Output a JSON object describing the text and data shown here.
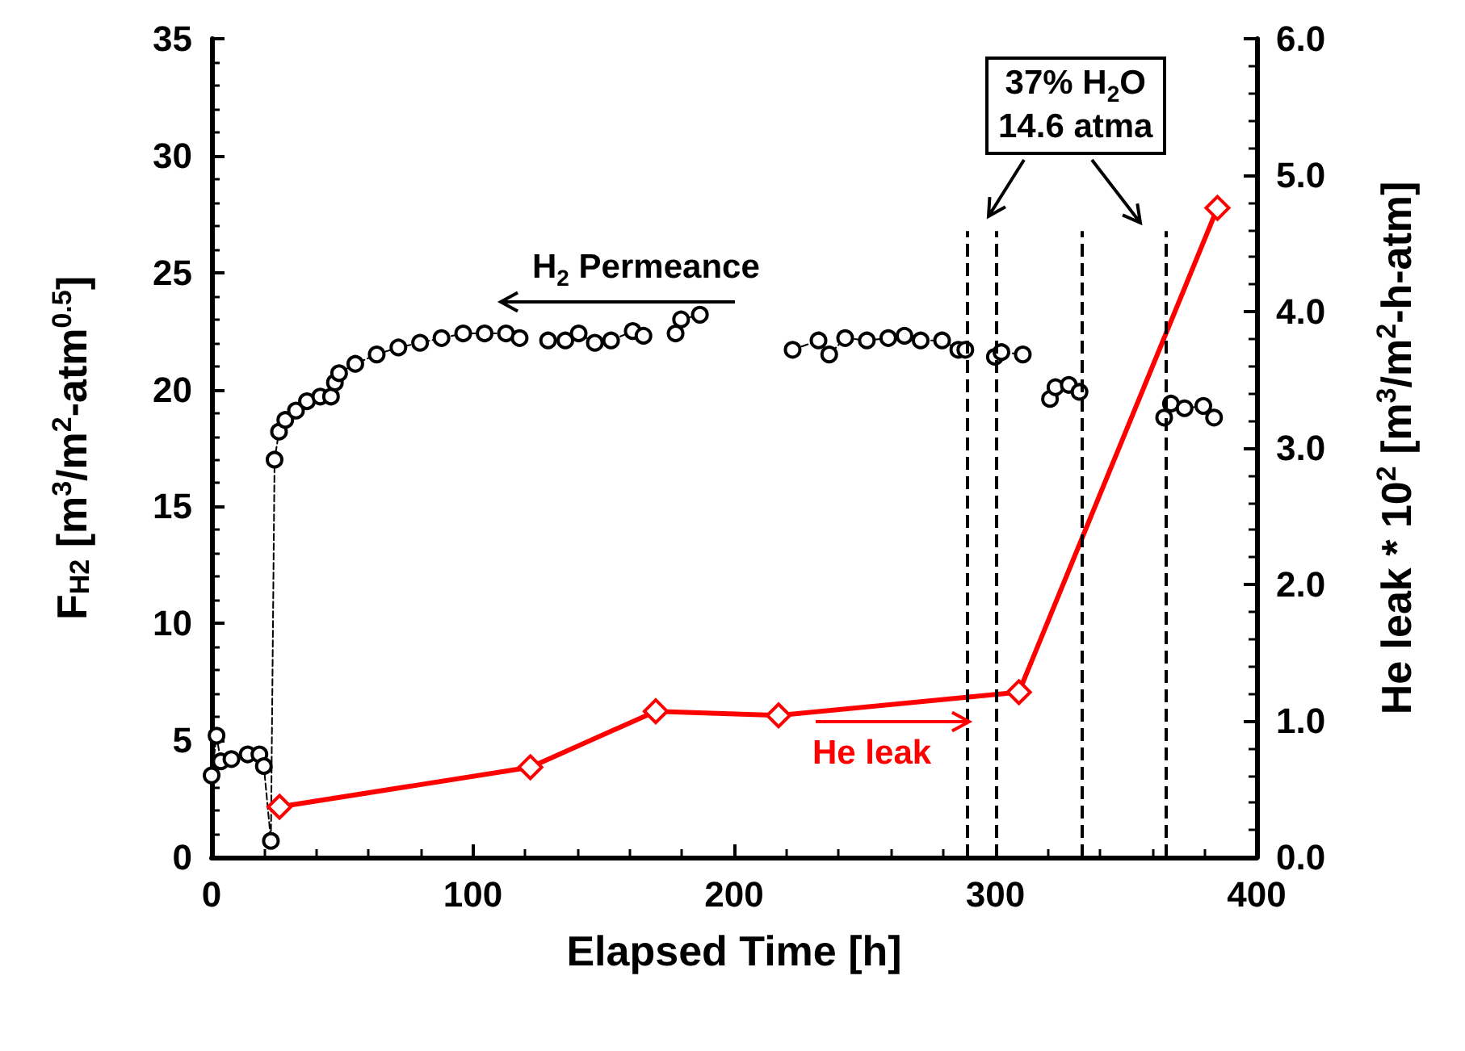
{
  "chart_data": {
    "type": "line",
    "xlabel": "Elapsed Time [h]",
    "ylabel": "F$_{H2}$ [m$^{3}$/m$^{2}$-atm$^{0.5}$]",
    "y2label": "He leak * 10$^{2}$ [m$^{3}$/m$^{2}$-h-atm]",
    "xlim": [
      0,
      400
    ],
    "xticks": [
      0,
      100,
      200,
      300,
      400
    ],
    "ylim": [
      0,
      35
    ],
    "yticks": [
      0,
      5,
      10,
      15,
      20,
      25,
      30,
      35
    ],
    "y2lim": [
      0,
      6
    ],
    "y2ticks": [
      {
        "value": 0,
        "label": "0.0"
      },
      {
        "value": 1,
        "label": "1.0"
      },
      {
        "value": 2,
        "label": "2.0"
      },
      {
        "value": 3,
        "label": "3.0"
      },
      {
        "value": 4,
        "label": "4.0"
      },
      {
        "value": 5,
        "label": "5.0"
      },
      {
        "value": 6,
        "label": "6.0"
      }
    ],
    "grid": false,
    "series": [
      {
        "color": "#000000",
        "marker": "circle",
        "line_style": "dashed",
        "x": [
          0,
          1.9,
          3.5,
          7.6,
          13.8,
          18.3,
          20,
          22.7,
          24.1,
          25.8,
          28.2,
          32.3,
          36.5,
          41.6,
          45.7,
          47.2,
          48.8,
          55,
          63.2,
          71.5,
          79.8,
          88,
          96.3,
          104.5,
          112.7,
          117.9,
          123,
          128.8,
          135.4,
          140.5,
          146.7,
          152.9,
          161.2,
          165.3,
          171,
          177.6,
          179.7,
          186.9,
          205,
          222.4,
          232.3,
          236.4,
          242.5,
          250.8,
          259,
          265.2,
          271.4,
          279.6,
          285.8,
          288.5,
          294,
          299.8,
          302.3,
          310.5,
          316,
          320.9,
          323,
          328.1,
          332.2,
          348,
          364.6,
          367.2,
          372.4,
          379.6,
          383.7
        ],
        "values": [
          3.5,
          5.2,
          4.1,
          4.2,
          4.4,
          4.4,
          3.9,
          0.7,
          17.0,
          18.2,
          18.7,
          19.1,
          19.5,
          19.7,
          19.7,
          20.3,
          20.7,
          21.1,
          21.5,
          21.8,
          22.0,
          22.2,
          22.4,
          22.4,
          22.4,
          22.2,
          null,
          22.1,
          22.1,
          22.4,
          22.0,
          22.1,
          22.5,
          22.3,
          null,
          22.4,
          23.0,
          23.2,
          null,
          21.7,
          22.1,
          21.5,
          22.2,
          22.1,
          22.2,
          22.3,
          22.1,
          22.1,
          21.7,
          21.7,
          null,
          21.4,
          21.6,
          21.5,
          null,
          19.6,
          20.1,
          20.2,
          19.9,
          null,
          18.8,
          19.4,
          19.2,
          19.3,
          18.8
        ]
      },
      {
        "axis": "y2",
        "color": "#ff0000",
        "marker": "diamond",
        "line_style": "solid",
        "x": [
          26,
          122,
          170,
          217,
          309,
          385
        ],
        "values": [
          0.37,
          0.66,
          1.07,
          1.04,
          1.21,
          4.76
        ]
      }
    ],
    "ref_lines": [
      {
        "axis": "x",
        "value": 289,
        "color": "#000000",
        "line_style": "dashed"
      },
      {
        "axis": "x",
        "value": 300,
        "color": "#000000",
        "line_style": "dashed"
      },
      {
        "axis": "x",
        "value": 333,
        "color": "#000000",
        "line_style": "dashed"
      },
      {
        "axis": "x",
        "value": 365,
        "color": "#000000",
        "line_style": "dashed"
      }
    ],
    "annotations": [
      "H$_{2}$ Permeance",
      "He leak",
      "37% H$_{2}$O\n14.6 atma"
    ]
  }
}
